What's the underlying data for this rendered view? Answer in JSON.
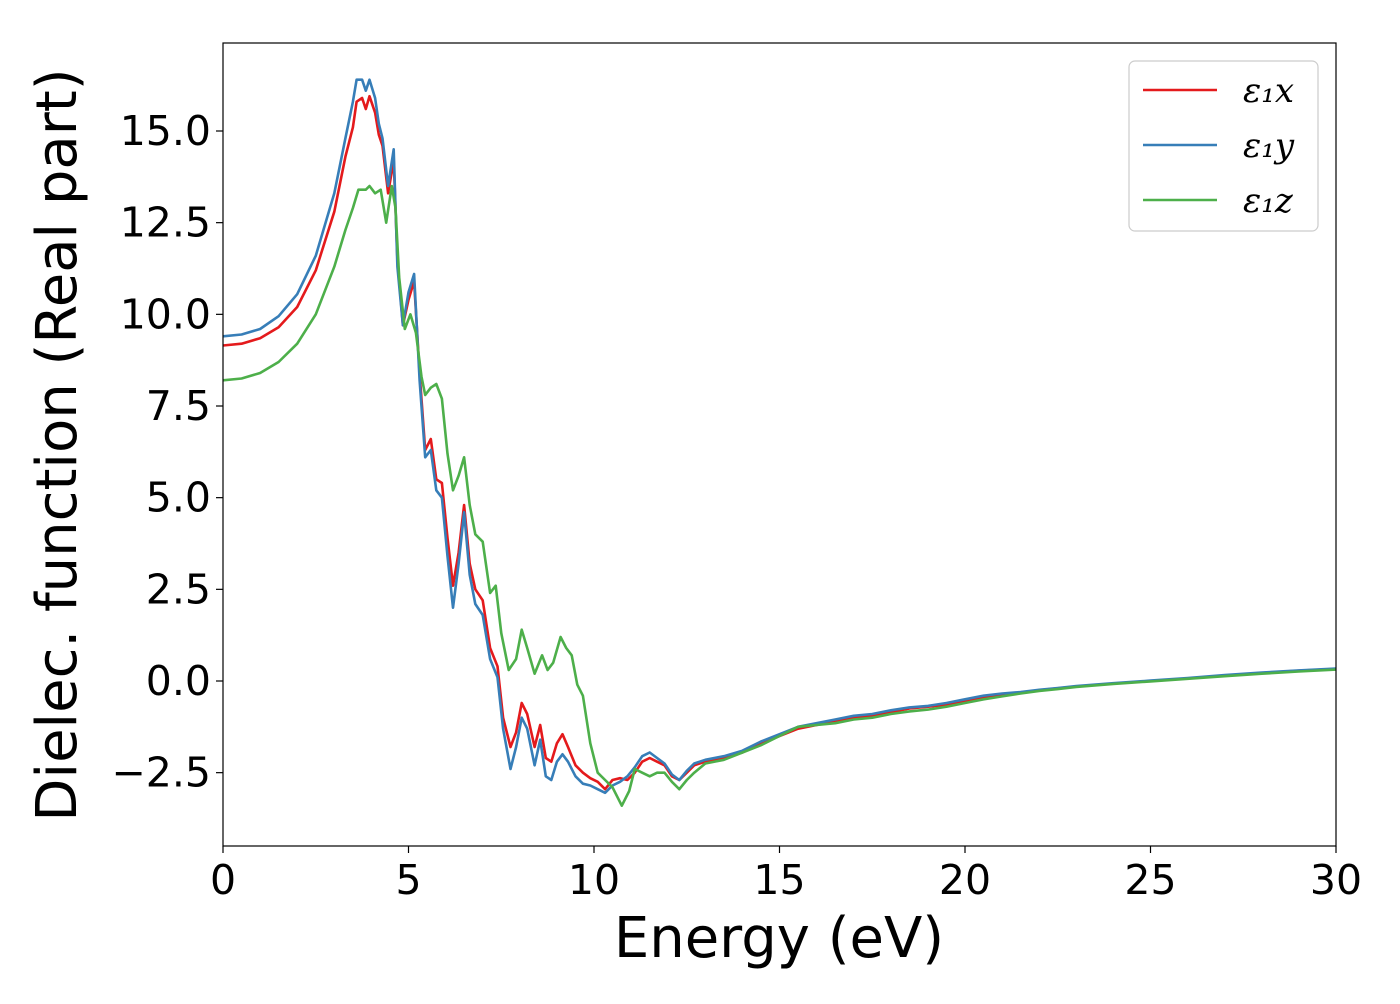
{
  "chart_data": {
    "type": "line",
    "title": "",
    "xlabel": "Energy (eV)",
    "ylabel": "Dielec. function (Real part)",
    "xlim": [
      0,
      30
    ],
    "ylim": [
      -4.5,
      17.4
    ],
    "xticks": [
      0,
      5,
      10,
      15,
      20,
      25,
      30
    ],
    "xtick_labels": [
      "0",
      "5",
      "10",
      "15",
      "20",
      "25",
      "30"
    ],
    "yticks": [
      -2.5,
      0.0,
      2.5,
      5.0,
      7.5,
      10.0,
      12.5,
      15.0
    ],
    "ytick_labels": [
      "−2.5",
      "0.0",
      "2.5",
      "5.0",
      "7.5",
      "10.0",
      "12.5",
      "15.0"
    ],
    "grid": false,
    "legend_position": "top-right",
    "series": [
      {
        "name": "ε₁x",
        "color": "#e41a1c",
        "points": [
          [
            0,
            9.15
          ],
          [
            0.5,
            9.2
          ],
          [
            1,
            9.35
          ],
          [
            1.5,
            9.65
          ],
          [
            2,
            10.2
          ],
          [
            2.5,
            11.2
          ],
          [
            3,
            12.8
          ],
          [
            3.3,
            14.3
          ],
          [
            3.5,
            15.1
          ],
          [
            3.6,
            15.8
          ],
          [
            3.75,
            15.9
          ],
          [
            3.85,
            15.6
          ],
          [
            3.95,
            15.95
          ],
          [
            4.1,
            15.5
          ],
          [
            4.2,
            14.9
          ],
          [
            4.3,
            14.6
          ],
          [
            4.45,
            13.3
          ],
          [
            4.6,
            14.2
          ],
          [
            4.7,
            11.5
          ],
          [
            4.85,
            9.7
          ],
          [
            5.0,
            10.4
          ],
          [
            5.15,
            10.9
          ],
          [
            5.3,
            8.4
          ],
          [
            5.45,
            6.3
          ],
          [
            5.6,
            6.6
          ],
          [
            5.75,
            5.5
          ],
          [
            5.9,
            5.4
          ],
          [
            6.05,
            3.9
          ],
          [
            6.2,
            2.6
          ],
          [
            6.35,
            3.5
          ],
          [
            6.5,
            4.8
          ],
          [
            6.65,
            3.2
          ],
          [
            6.8,
            2.5
          ],
          [
            7.0,
            2.2
          ],
          [
            7.2,
            0.9
          ],
          [
            7.4,
            0.4
          ],
          [
            7.55,
            -1.0
          ],
          [
            7.75,
            -1.8
          ],
          [
            7.9,
            -1.4
          ],
          [
            8.05,
            -0.6
          ],
          [
            8.2,
            -0.9
          ],
          [
            8.4,
            -1.8
          ],
          [
            8.55,
            -1.2
          ],
          [
            8.7,
            -2.1
          ],
          [
            8.85,
            -2.2
          ],
          [
            9.0,
            -1.7
          ],
          [
            9.15,
            -1.45
          ],
          [
            9.3,
            -1.8
          ],
          [
            9.5,
            -2.3
          ],
          [
            9.7,
            -2.5
          ],
          [
            9.9,
            -2.65
          ],
          [
            10.1,
            -2.75
          ],
          [
            10.3,
            -2.95
          ],
          [
            10.5,
            -2.7
          ],
          [
            10.7,
            -2.65
          ],
          [
            10.9,
            -2.7
          ],
          [
            11.1,
            -2.5
          ],
          [
            11.3,
            -2.2
          ],
          [
            11.5,
            -2.1
          ],
          [
            11.7,
            -2.2
          ],
          [
            11.9,
            -2.3
          ],
          [
            12.1,
            -2.6
          ],
          [
            12.3,
            -2.7
          ],
          [
            12.5,
            -2.5
          ],
          [
            12.7,
            -2.3
          ],
          [
            13.0,
            -2.2
          ],
          [
            13.5,
            -2.1
          ],
          [
            14,
            -1.95
          ],
          [
            14.5,
            -1.7
          ],
          [
            15,
            -1.5
          ],
          [
            15.5,
            -1.3
          ],
          [
            16,
            -1.2
          ],
          [
            16.5,
            -1.1
          ],
          [
            17,
            -1.0
          ],
          [
            17.5,
            -0.95
          ],
          [
            18,
            -0.85
          ],
          [
            18.5,
            -0.75
          ],
          [
            19,
            -0.7
          ],
          [
            19.5,
            -0.65
          ],
          [
            20,
            -0.55
          ],
          [
            20.5,
            -0.45
          ],
          [
            21,
            -0.38
          ],
          [
            21.5,
            -0.32
          ],
          [
            22,
            -0.25
          ],
          [
            22.5,
            -0.2
          ],
          [
            23,
            -0.15
          ],
          [
            24,
            -0.07
          ],
          [
            25,
            0.0
          ],
          [
            26,
            0.07
          ],
          [
            27,
            0.15
          ],
          [
            28,
            0.22
          ],
          [
            29,
            0.28
          ],
          [
            30,
            0.33
          ]
        ]
      },
      {
        "name": "ε₁y",
        "color": "#377eb8",
        "points": [
          [
            0,
            9.4
          ],
          [
            0.5,
            9.45
          ],
          [
            1,
            9.6
          ],
          [
            1.5,
            9.95
          ],
          [
            2,
            10.55
          ],
          [
            2.5,
            11.6
          ],
          [
            3,
            13.3
          ],
          [
            3.3,
            14.8
          ],
          [
            3.5,
            15.8
          ],
          [
            3.6,
            16.4
          ],
          [
            3.75,
            16.4
          ],
          [
            3.85,
            16.1
          ],
          [
            3.95,
            16.4
          ],
          [
            4.1,
            15.9
          ],
          [
            4.2,
            15.2
          ],
          [
            4.3,
            14.8
          ],
          [
            4.45,
            13.5
          ],
          [
            4.6,
            14.5
          ],
          [
            4.7,
            11.3
          ],
          [
            4.85,
            9.7
          ],
          [
            5.0,
            10.6
          ],
          [
            5.15,
            11.1
          ],
          [
            5.3,
            8.2
          ],
          [
            5.45,
            6.1
          ],
          [
            5.6,
            6.3
          ],
          [
            5.75,
            5.2
          ],
          [
            5.9,
            5.0
          ],
          [
            6.05,
            3.4
          ],
          [
            6.2,
            2.0
          ],
          [
            6.35,
            3.2
          ],
          [
            6.5,
            4.6
          ],
          [
            6.65,
            2.9
          ],
          [
            6.8,
            2.1
          ],
          [
            7.0,
            1.8
          ],
          [
            7.2,
            0.6
          ],
          [
            7.4,
            0.1
          ],
          [
            7.55,
            -1.3
          ],
          [
            7.75,
            -2.4
          ],
          [
            7.9,
            -1.8
          ],
          [
            8.05,
            -1.0
          ],
          [
            8.2,
            -1.3
          ],
          [
            8.4,
            -2.3
          ],
          [
            8.55,
            -1.6
          ],
          [
            8.7,
            -2.6
          ],
          [
            8.85,
            -2.7
          ],
          [
            9.0,
            -2.2
          ],
          [
            9.15,
            -2.0
          ],
          [
            9.3,
            -2.2
          ],
          [
            9.5,
            -2.6
          ],
          [
            9.7,
            -2.8
          ],
          [
            9.9,
            -2.85
          ],
          [
            10.1,
            -2.95
          ],
          [
            10.3,
            -3.05
          ],
          [
            10.5,
            -2.85
          ],
          [
            10.7,
            -2.75
          ],
          [
            10.9,
            -2.6
          ],
          [
            11.1,
            -2.35
          ],
          [
            11.3,
            -2.05
          ],
          [
            11.5,
            -1.95
          ],
          [
            11.7,
            -2.1
          ],
          [
            11.9,
            -2.25
          ],
          [
            12.1,
            -2.55
          ],
          [
            12.3,
            -2.7
          ],
          [
            12.5,
            -2.45
          ],
          [
            12.7,
            -2.25
          ],
          [
            13.0,
            -2.15
          ],
          [
            13.5,
            -2.05
          ],
          [
            14,
            -1.9
          ],
          [
            14.5,
            -1.65
          ],
          [
            15,
            -1.45
          ],
          [
            15.5,
            -1.25
          ],
          [
            16,
            -1.15
          ],
          [
            16.5,
            -1.05
          ],
          [
            17,
            -0.95
          ],
          [
            17.5,
            -0.9
          ],
          [
            18,
            -0.8
          ],
          [
            18.5,
            -0.72
          ],
          [
            19,
            -0.68
          ],
          [
            19.5,
            -0.6
          ],
          [
            20,
            -0.5
          ],
          [
            20.5,
            -0.4
          ],
          [
            21,
            -0.34
          ],
          [
            21.5,
            -0.3
          ],
          [
            22,
            -0.24
          ],
          [
            22.5,
            -0.19
          ],
          [
            23,
            -0.14
          ],
          [
            24,
            -0.06
          ],
          [
            25,
            0.01
          ],
          [
            26,
            0.08
          ],
          [
            27,
            0.16
          ],
          [
            28,
            0.23
          ],
          [
            29,
            0.29
          ],
          [
            30,
            0.34
          ]
        ]
      },
      {
        "name": "ε₁z",
        "color": "#4daf4a",
        "points": [
          [
            0,
            8.2
          ],
          [
            0.5,
            8.25
          ],
          [
            1,
            8.4
          ],
          [
            1.5,
            8.7
          ],
          [
            2,
            9.2
          ],
          [
            2.5,
            10.0
          ],
          [
            3,
            11.3
          ],
          [
            3.3,
            12.3
          ],
          [
            3.5,
            12.9
          ],
          [
            3.65,
            13.4
          ],
          [
            3.85,
            13.4
          ],
          [
            3.95,
            13.5
          ],
          [
            4.1,
            13.3
          ],
          [
            4.25,
            13.4
          ],
          [
            4.4,
            12.5
          ],
          [
            4.55,
            13.5
          ],
          [
            4.65,
            12.9
          ],
          [
            4.75,
            11.0
          ],
          [
            4.9,
            9.6
          ],
          [
            5.05,
            10.0
          ],
          [
            5.2,
            9.5
          ],
          [
            5.35,
            8.3
          ],
          [
            5.45,
            7.8
          ],
          [
            5.6,
            8.0
          ],
          [
            5.75,
            8.1
          ],
          [
            5.9,
            7.7
          ],
          [
            6.05,
            6.2
          ],
          [
            6.2,
            5.2
          ],
          [
            6.35,
            5.6
          ],
          [
            6.5,
            6.1
          ],
          [
            6.65,
            4.8
          ],
          [
            6.8,
            4.0
          ],
          [
            7.0,
            3.8
          ],
          [
            7.2,
            2.4
          ],
          [
            7.35,
            2.6
          ],
          [
            7.5,
            1.3
          ],
          [
            7.7,
            0.3
          ],
          [
            7.9,
            0.6
          ],
          [
            8.05,
            1.4
          ],
          [
            8.2,
            0.9
          ],
          [
            8.4,
            0.2
          ],
          [
            8.6,
            0.7
          ],
          [
            8.75,
            0.3
          ],
          [
            8.9,
            0.5
          ],
          [
            9.1,
            1.2
          ],
          [
            9.25,
            0.9
          ],
          [
            9.4,
            0.7
          ],
          [
            9.55,
            -0.1
          ],
          [
            9.7,
            -0.4
          ],
          [
            9.9,
            -1.7
          ],
          [
            10.1,
            -2.5
          ],
          [
            10.3,
            -2.7
          ],
          [
            10.5,
            -2.9
          ],
          [
            10.75,
            -3.4
          ],
          [
            10.95,
            -3.0
          ],
          [
            11.1,
            -2.4
          ],
          [
            11.3,
            -2.5
          ],
          [
            11.5,
            -2.6
          ],
          [
            11.7,
            -2.5
          ],
          [
            11.9,
            -2.5
          ],
          [
            12.1,
            -2.75
          ],
          [
            12.3,
            -2.95
          ],
          [
            12.5,
            -2.7
          ],
          [
            12.7,
            -2.5
          ],
          [
            13.0,
            -2.25
          ],
          [
            13.5,
            -2.15
          ],
          [
            14,
            -1.95
          ],
          [
            14.5,
            -1.75
          ],
          [
            15,
            -1.5
          ],
          [
            15.5,
            -1.25
          ],
          [
            16,
            -1.2
          ],
          [
            16.5,
            -1.15
          ],
          [
            17,
            -1.05
          ],
          [
            17.5,
            -1.0
          ],
          [
            18,
            -0.9
          ],
          [
            18.5,
            -0.83
          ],
          [
            19,
            -0.78
          ],
          [
            19.5,
            -0.7
          ],
          [
            20,
            -0.6
          ],
          [
            20.5,
            -0.5
          ],
          [
            21,
            -0.42
          ],
          [
            21.5,
            -0.34
          ],
          [
            22,
            -0.27
          ],
          [
            22.5,
            -0.22
          ],
          [
            23,
            -0.16
          ],
          [
            24,
            -0.08
          ],
          [
            25,
            -0.01
          ],
          [
            26,
            0.06
          ],
          [
            27,
            0.13
          ],
          [
            28,
            0.2
          ],
          [
            29,
            0.26
          ],
          [
            30,
            0.31
          ]
        ]
      }
    ]
  }
}
